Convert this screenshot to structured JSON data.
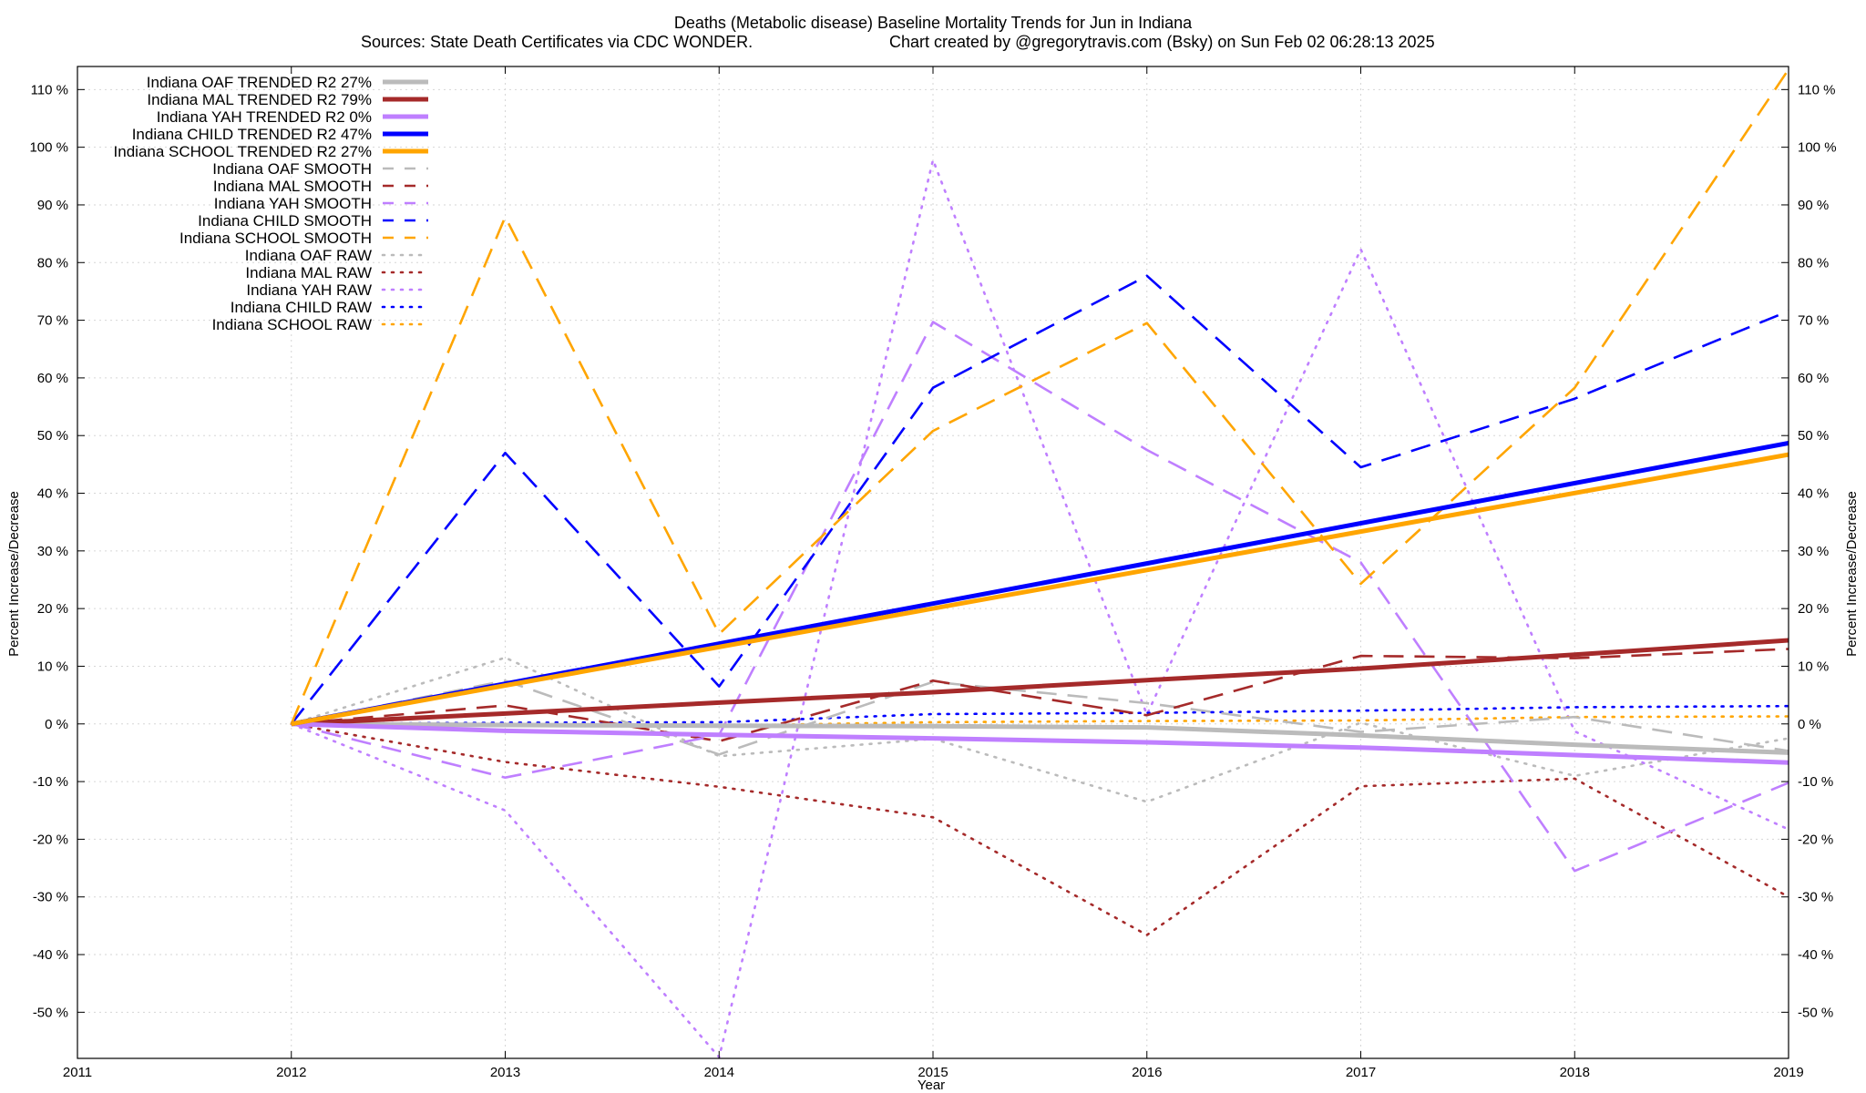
{
  "chart_data": {
    "type": "line",
    "title_line1": "Deaths (Metabolic disease)  Baseline Mortality Trends for Jun in Indiana",
    "title_line2_left": "Sources: State Death Certificates via CDC WONDER.",
    "title_line2_right": "Chart created by @gregorytravis.com (Bsky) on Sun Feb 02 06:28:13 2025",
    "xlabel": "Year",
    "ylabel": "Percent Increase/Decrease",
    "ylabel_right": "Percent Increase/Decrease",
    "xlim": [
      2011,
      2019
    ],
    "ylim": [
      -58,
      114
    ],
    "x_ticks": [
      2011,
      2012,
      2013,
      2014,
      2015,
      2016,
      2017,
      2018,
      2019
    ],
    "x_tick_labels": [
      "2011",
      "2012",
      "2013",
      "2014",
      "2015",
      "2016",
      "2017",
      "2018",
      "2019"
    ],
    "y_ticks": [
      -50,
      -40,
      -30,
      -20,
      -10,
      0,
      10,
      20,
      30,
      40,
      50,
      60,
      70,
      80,
      90,
      100,
      110
    ],
    "y_tick_labels": [
      "-50 %",
      "-40 %",
      "-30 %",
      "-20 %",
      "-10 %",
      "0 %",
      "10 %",
      "20 %",
      "30 %",
      "40 %",
      "50 %",
      "60 %",
      "70 %",
      "80 %",
      "90 %",
      "100 %",
      "110 %"
    ],
    "grid": true,
    "legend_position": "top-left",
    "colors": {
      "OAF": "#bbbbbb",
      "MAL": "#a52a2a",
      "YAH": "#bf7fff",
      "CHILD": "#0000ff",
      "SCHOOL": "#ffa500"
    },
    "series": [
      {
        "name": "Indiana OAF TRENDED R2  27%",
        "group": "OAF",
        "style": "solid",
        "x": [
          2012,
          2013,
          2014,
          2015,
          2016,
          2017,
          2018,
          2019
        ],
        "y": [
          0,
          -0.2,
          -0.3,
          -0.4,
          -0.6,
          -2.0,
          -3.6,
          -5.0
        ]
      },
      {
        "name": "Indiana MAL TRENDED R2  79%",
        "group": "MAL",
        "style": "solid",
        "x": [
          2012,
          2013,
          2014,
          2015,
          2016,
          2017,
          2018,
          2019
        ],
        "y": [
          0,
          1.8,
          3.7,
          5.5,
          7.6,
          9.6,
          12.0,
          14.5
        ]
      },
      {
        "name": "Indiana YAH TRENDED R2   0%",
        "group": "YAH",
        "style": "solid",
        "x": [
          2012,
          2013,
          2014,
          2015,
          2016,
          2017,
          2018,
          2019
        ],
        "y": [
          0,
          -1.2,
          -1.9,
          -2.5,
          -3.2,
          -4.1,
          -5.4,
          -6.7
        ]
      },
      {
        "name": "Indiana CHILD TRENDED R2  47%",
        "group": "CHILD",
        "style": "solid",
        "x": [
          2012,
          2019
        ],
        "y": [
          0,
          48.7
        ]
      },
      {
        "name": "Indiana SCHOOL TRENDED R2  27%",
        "group": "SCHOOL",
        "style": "solid",
        "x": [
          2012,
          2019
        ],
        "y": [
          0,
          46.7
        ]
      },
      {
        "name": "Indiana OAF SMOOTH",
        "group": "OAF",
        "style": "dashed",
        "x": [
          2012,
          2013,
          2014,
          2015,
          2016,
          2017,
          2018,
          2019
        ],
        "y": [
          0,
          7.5,
          -5.3,
          7.3,
          3.6,
          -1.4,
          1.2,
          -4.7
        ]
      },
      {
        "name": "Indiana MAL SMOOTH",
        "group": "MAL",
        "style": "dashed",
        "x": [
          2012,
          2013,
          2014,
          2015,
          2016,
          2017,
          2018,
          2019
        ],
        "y": [
          0,
          3.2,
          -3.0,
          7.5,
          1.5,
          11.8,
          11.4,
          13.0
        ]
      },
      {
        "name": "Indiana YAH SMOOTH",
        "group": "YAH",
        "style": "dashed",
        "x": [
          2012,
          2013,
          2014,
          2015,
          2016,
          2017,
          2018,
          2019
        ],
        "y": [
          0,
          -9.3,
          -1.9,
          69.7,
          47.5,
          28.0,
          -25.5,
          -10.2
        ]
      },
      {
        "name": "Indiana CHILD SMOOTH",
        "group": "CHILD",
        "style": "dashed",
        "x": [
          2012,
          2013,
          2014,
          2015,
          2016,
          2017,
          2018,
          2019
        ],
        "y": [
          0,
          47.0,
          6.5,
          58.3,
          77.7,
          44.5,
          56.4,
          71.6
        ]
      },
      {
        "name": "Indiana SCHOOL SMOOTH",
        "group": "SCHOOL",
        "style": "dashed",
        "x": [
          2012,
          2013,
          2014,
          2015,
          2016,
          2017,
          2018,
          2019
        ],
        "y": [
          0,
          87.9,
          15.6,
          50.8,
          69.5,
          24.3,
          58.3,
          113.5
        ]
      },
      {
        "name": "Indiana OAF RAW",
        "group": "OAF",
        "style": "dotted",
        "x": [
          2012,
          2013,
          2014,
          2015,
          2016,
          2017,
          2018,
          2019
        ],
        "y": [
          0,
          11.5,
          -5.6,
          -2.6,
          -13.5,
          0.2,
          -9.0,
          -2.5
        ]
      },
      {
        "name": "Indiana MAL RAW",
        "group": "MAL",
        "style": "dotted",
        "x": [
          2012,
          2013,
          2014,
          2015,
          2016,
          2017,
          2018,
          2019
        ],
        "y": [
          0,
          -6.6,
          -10.9,
          -16.2,
          -36.6,
          -10.8,
          -9.5,
          -30.0
        ]
      },
      {
        "name": "Indiana YAH RAW",
        "group": "YAH",
        "style": "dotted",
        "x": [
          2012,
          2013,
          2014,
          2015,
          2016,
          2017,
          2018,
          2019
        ],
        "y": [
          0,
          -15.0,
          -57.8,
          97.8,
          1.6,
          82.3,
          -1.3,
          -18.3
        ]
      },
      {
        "name": "Indiana CHILD RAW",
        "group": "CHILD",
        "style": "dotted",
        "x": [
          2012,
          2013,
          2014,
          2015,
          2016,
          2017,
          2018,
          2019
        ],
        "y": [
          0,
          0.2,
          0.3,
          1.7,
          1.9,
          2.3,
          2.9,
          3.1
        ]
      },
      {
        "name": "Indiana SCHOOL RAW",
        "group": "SCHOOL",
        "style": "dotted",
        "x": [
          2012,
          2013,
          2014,
          2015,
          2016,
          2017,
          2018,
          2019
        ],
        "y": [
          0,
          -0.1,
          -0.3,
          0.3,
          0.5,
          0.6,
          1.2,
          1.3
        ]
      }
    ]
  }
}
